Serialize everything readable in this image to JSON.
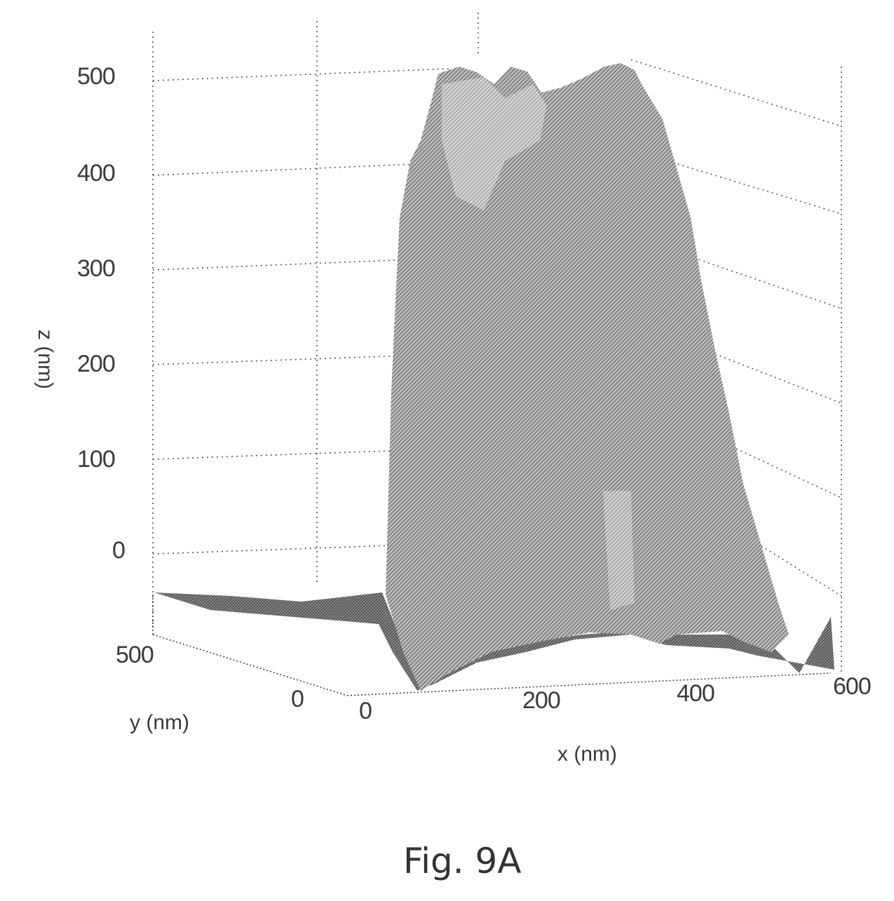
{
  "chart_data": {
    "type": "surface",
    "title": "",
    "zlabel": "z (nm)",
    "ylabel": "y (nm)",
    "xlabel": "x (nm)",
    "z_ticks": [
      "500",
      "400",
      "300",
      "200",
      "100",
      "0"
    ],
    "y_ticks": [
      "500",
      "0"
    ],
    "x_ticks": [
      "0",
      "200",
      "400",
      "600"
    ],
    "zlim": [
      -70,
      540
    ],
    "ylim": [
      0,
      500
    ],
    "xlim": [
      0,
      600
    ],
    "grid": true,
    "profile": {
      "x": [
        0,
        60,
        100,
        150,
        190,
        230,
        270,
        310,
        350,
        390,
        430,
        470,
        520,
        560,
        600
      ],
      "z": [
        -50,
        -50,
        -50,
        -45,
        500,
        500,
        490,
        505,
        500,
        380,
        200,
        -10,
        -60,
        -55,
        -55
      ]
    }
  },
  "caption": "Fig. 9A"
}
